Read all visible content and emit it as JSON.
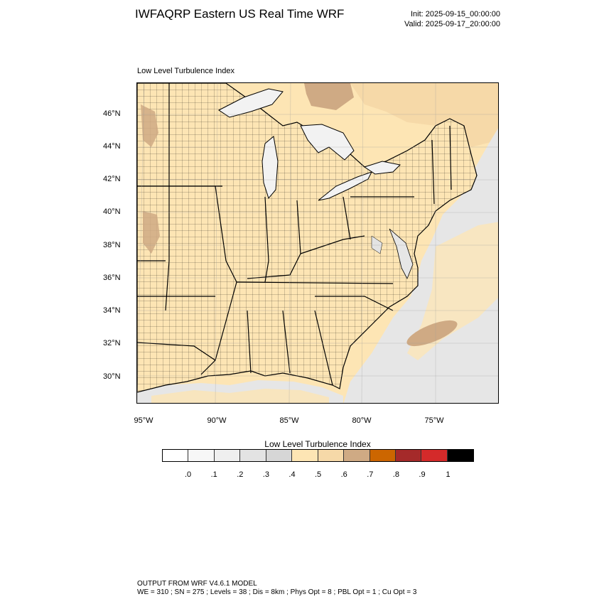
{
  "header": {
    "title": "IWFAQRP Eastern US Real Time WRF",
    "init": "Init: 2025-09-15_00:00:00",
    "valid": "Valid: 2025-09-17_20:00:00"
  },
  "map": {
    "field_label": "Low Level Turbulence Index",
    "lat_labels": [
      "46°N",
      "44°N",
      "42°N",
      "40°N",
      "38°N",
      "36°N",
      "34°N",
      "32°N",
      "30°N"
    ],
    "lon_labels": [
      "95°W",
      "90°W",
      "85°W",
      "80°W",
      "75°W"
    ],
    "colors": {
      "land_fill": "#fde5b4",
      "ocean_light": "#e6e6e6",
      "lake_fill": "#f2f2f2",
      "tan_patch": "#cfaa84",
      "light_tan": "#f6d9a8"
    }
  },
  "colorbar": {
    "title": "Low Level Turbulence Index",
    "colors": [
      "#ffffff",
      "#f7f7f7",
      "#efefef",
      "#e3e3e3",
      "#d6d6d6",
      "#fde5b4",
      "#f6d9a8",
      "#cfaa84",
      "#cc6600",
      "#a52a2a",
      "#d42a2a",
      "#000000"
    ],
    "labels": [
      ".0",
      ".1",
      ".2",
      ".3",
      ".4",
      ".5",
      ".6",
      ".7",
      ".8",
      ".9",
      "1"
    ]
  },
  "footer": {
    "line1": "OUTPUT FROM WRF V4.6.1 MODEL",
    "line2": "WE = 310 ; SN = 275 ; Levels = 38 ; Dis = 8km ; Phys Opt = 8 ; PBL Opt = 1 ; Cu Opt = 3"
  }
}
